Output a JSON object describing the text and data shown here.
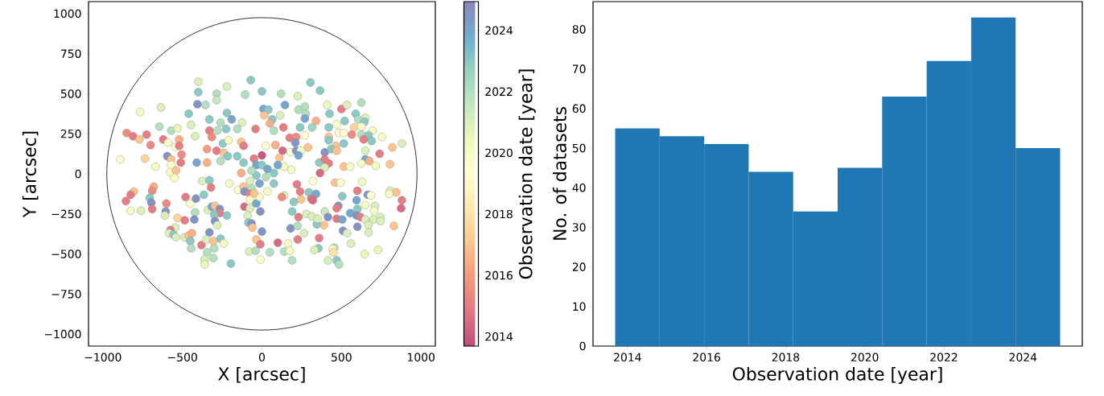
{
  "chart_data": [
    {
      "type": "scatter",
      "xlabel": "X [arcsec]",
      "ylabel": "Y [arcsec]",
      "clabel": "Observation date [year]",
      "xlim": [
        -1090,
        1090
      ],
      "ylim": [
        -1075,
        1075
      ],
      "xticks": [
        {
          "value": -1000,
          "label": "−1000"
        },
        {
          "value": -500,
          "label": "−500"
        },
        0,
        500,
        1000
      ],
      "yticks": [
        {
          "value": -1000,
          "label": "−1000"
        },
        {
          "value": -750,
          "label": "−750"
        },
        {
          "value": -500,
          "label": "−500"
        },
        {
          "value": -250,
          "label": "−250"
        },
        0,
        250,
        500,
        750,
        1000
      ],
      "clim": [
        2013.69,
        2024.94
      ],
      "cticks": [
        2014,
        2016,
        2018,
        2020,
        2022,
        2024
      ],
      "marker": "circle",
      "series": [
        {
          "type": "scatter",
          "x": [
            -400,
            -70,
            -400,
            -285,
            -220,
            -285,
            -105,
            0,
            -405,
            -355,
            -635,
            -765,
            -460,
            -330,
            -260,
            -220,
            -190,
            -125,
            -645,
            -445,
            -570,
            -530,
            -330,
            -280,
            -225,
            -155,
            -40,
            -850,
            -810,
            -770,
            -725,
            -420,
            -315,
            -620,
            -590,
            -520,
            -700,
            -545,
            -520,
            -245,
            -210,
            -130,
            -115,
            -345,
            -285,
            -240,
            -595,
            -505,
            -570,
            -510,
            -410,
            -345,
            -260,
            -215,
            -155,
            -115,
            -890,
            -735,
            -670,
            -570,
            -50,
            305,
            365,
            120,
            225,
            145,
            10,
            40,
            230,
            270,
            410,
            500,
            535,
            625,
            115,
            275,
            425,
            590,
            650,
            15,
            65,
            270,
            340,
            605,
            645,
            50,
            135,
            240,
            315,
            420,
            470,
            520,
            580,
            625,
            695,
            75,
            485,
            515,
            565,
            625,
            670,
            175,
            215,
            270,
            420,
            755,
            640,
            690,
            420,
            210,
            25,
            85,
            465,
            515,
            880,
            820,
            290,
            130,
            180,
            215,
            245,
            395,
            435,
            470,
            650,
            740,
            230,
            110,
            650,
            675,
            625,
            715,
            805,
            360,
            395,
            420,
            515,
            555,
            395,
            365,
            0,
            140,
            185,
            -575,
            -540,
            -550,
            -805,
            -825,
            -680,
            -690,
            -855,
            -705,
            -695,
            -690,
            -825,
            -760,
            -600,
            -605,
            -610,
            -530,
            -480,
            -450,
            -415,
            -365,
            -375,
            -330,
            -320,
            -205,
            -485,
            -420,
            -425,
            -340,
            -315,
            -295,
            -265,
            -265,
            -220,
            -300,
            -295,
            -280,
            -545,
            -575,
            -585,
            -555,
            -540,
            -485,
            -460,
            -440,
            -330,
            -450,
            -445,
            -380,
            -350,
            -305,
            -260,
            -240,
            -300,
            -345,
            -305,
            -360,
            -360,
            -195,
            -130,
            -150,
            -115,
            -65,
            -110,
            -75,
            -75,
            -110,
            -75,
            -35,
            -10,
            -90,
            -85,
            -65,
            -60,
            0,
            -35,
            -10,
            -80,
            -40,
            220,
            320,
            460,
            495,
            630,
            805,
            845,
            800,
            240,
            295,
            340,
            310,
            320,
            600,
            665,
            685,
            505,
            140,
            200,
            245,
            125,
            880,
            875,
            710,
            650,
            705,
            595,
            480,
            470,
            600,
            555,
            595,
            620,
            650,
            700,
            745,
            745,
            670,
            670,
            830,
            600,
            395,
            415,
            470,
            505,
            510,
            535,
            390,
            345,
            230,
            190,
            280,
            315,
            350,
            180,
            225,
            265,
            225,
            165,
            100,
            360,
            355,
            330,
            455,
            445,
            450,
            560,
            645,
            730,
            50,
            140,
            175,
            190,
            415,
            470,
            485,
            -10,
            -35,
            0,
            35,
            -35,
            25,
            -15,
            75,
            -65,
            100,
            -75,
            75,
            35,
            -15,
            -50
          ],
          "values": [
            575,
            585,
            510,
            500,
            545,
            460,
            495,
            515,
            435,
            430,
            415,
            385,
            375,
            340,
            320,
            380,
            340,
            320,
            295,
            305,
            270,
            285,
            270,
            270,
            280,
            280,
            280,
            255,
            235,
            215,
            245,
            235,
            230,
            215,
            195,
            215,
            180,
            170,
            175,
            190,
            210,
            200,
            175,
            155,
            145,
            130,
            110,
            120,
            90,
            70,
            70,
            70,
            80,
            110,
            110,
            70,
            90,
            95,
            45,
            55,
            95,
            570,
            520,
            500,
            485,
            430,
            405,
            400,
            400,
            420,
            430,
            405,
            430,
            445,
            365,
            375,
            375,
            375,
            350,
            365,
            340,
            345,
            330,
            340,
            325,
            315,
            290,
            290,
            290,
            290,
            310,
            330,
            290,
            295,
            270,
            270,
            255,
            255,
            245,
            245,
            240,
            225,
            230,
            240,
            230,
            230,
            215,
            205,
            210,
            195,
            175,
            180,
            175,
            190,
            190,
            165,
            165,
            145,
            135,
            145,
            145,
            135,
            155,
            145,
            145,
            125,
            115,
            100,
            90,
            80,
            65,
            50,
            60,
            70,
            90,
            65,
            45,
            45,
            40,
            5,
            115,
            45,
            25,
            10,
            20,
            -25,
            -110,
            -130,
            -80,
            -105,
            -170,
            -150,
            -180,
            -220,
            -230,
            -230,
            -185,
            -235,
            -260,
            -275,
            -145,
            -185,
            -155,
            -130,
            -45,
            -40,
            -85,
            -60,
            -290,
            -240,
            -285,
            -225,
            -205,
            -200,
            -220,
            -245,
            -260,
            -255,
            -295,
            -320,
            -335,
            -350,
            -370,
            -380,
            -395,
            -395,
            -385,
            -370,
            -365,
            -420,
            -465,
            -445,
            -410,
            -420,
            -405,
            -435,
            -465,
            -490,
            -525,
            -535,
            -565,
            -560,
            5,
            -100,
            -80,
            -90,
            -110,
            -125,
            -160,
            -205,
            -215,
            -185,
            -235,
            -260,
            -305,
            -310,
            -335,
            -360,
            -410,
            -440,
            -485,
            -480,
            -65,
            -45,
            -55,
            -55,
            -50,
            -105,
            -115,
            -125,
            -110,
            -115,
            -125,
            -155,
            -165,
            -105,
            -130,
            -135,
            -140,
            -135,
            -175,
            -160,
            -145,
            -165,
            -215,
            -200,
            -195,
            -230,
            -165,
            -200,
            -215,
            -220,
            -245,
            -260,
            -270,
            -285,
            -285,
            -270,
            -295,
            -320,
            -365,
            -325,
            -330,
            -235,
            -270,
            -280,
            -285,
            -355,
            -370,
            -320,
            -315,
            -270,
            -235,
            -250,
            -265,
            -280,
            -340,
            -325,
            -370,
            -410,
            -435,
            -430,
            -400,
            -465,
            -475,
            -460,
            -470,
            -490,
            -435,
            -500,
            -475,
            -490,
            -485,
            -480,
            -540,
            -540,
            -540,
            -565,
            -535,
            55,
            55,
            30,
            -10,
            -20,
            -60,
            5,
            20,
            55,
            -45,
            -60,
            -110,
            -145,
            -120
          ],
          "cvalues": [
            2021,
            2023,
            2023,
            2022,
            2021,
            2021.5,
            2022,
            2023,
            2024.5,
            2022,
            2021,
            2020,
            2023,
            2023,
            2022,
            2023,
            2024,
            2021,
            2022,
            2021,
            2022,
            2020.5,
            2015,
            2022,
            2023,
            2022,
            2015,
            2015.5,
            2015,
            2017,
            2015,
            2021,
            2015.5,
            2015,
            2019.5,
            2016.5,
            2015.5,
            2019.5,
            2015,
            2023,
            2020,
            2017,
            2015,
            2016,
            2015,
            2017,
            2024.5,
            2015.5,
            2017,
            2015,
            2024,
            2016.5,
            2022,
            2023,
            2023,
            2023,
            2019.5,
            2017.5,
            2020,
            2019.5,
            2015,
            2023,
            2023,
            2022,
            2021,
            2024,
            2024,
            2023,
            2022,
            2022,
            2020.5,
            2015,
            2021,
            2022,
            2021,
            2022,
            2023,
            2023,
            2021,
            2017,
            2023,
            2024,
            2016.5,
            2022,
            2023,
            2016.5,
            2015,
            2023,
            2022.5,
            2023,
            2019.5,
            2023,
            2017.5,
            2020,
            2020,
            2022,
            2019,
            2019.5,
            2015.5,
            2022,
            2023,
            2015,
            2015.5,
            2019.5,
            2017,
            2020,
            2015,
            2023,
            2023,
            2024.5,
            2019.5,
            2016.5,
            2017,
            2023,
            2021,
            2017,
            2017,
            2014.5,
            2019.5,
            2024.5,
            2020,
            2024.5,
            2023,
            2017,
            2021,
            2015,
            2024,
            2017,
            2024,
            2016.5,
            2020,
            2020,
            2017,
            2023,
            2015,
            2015,
            2017,
            2020,
            2021,
            2014.5,
            2014,
            2020,
            2020,
            2020,
            2017,
            2019,
            2017,
            2015,
            2016.5,
            2015.5,
            2015,
            2023,
            2024.5,
            2015,
            2020,
            2021,
            2015.5,
            2024.5,
            2021,
            2017.5,
            2015,
            2019.5,
            2024.5,
            2023,
            2021,
            2023,
            2015,
            2020,
            2015,
            2022,
            2024.5,
            2021,
            2024,
            2017,
            2024.5,
            2015,
            2023,
            2023,
            2024.5,
            2021,
            2021,
            2015,
            2021,
            2023,
            2021,
            2021,
            2017,
            2016.5,
            2024.5,
            2023,
            2022,
            2015,
            2021,
            2017,
            2023,
            2020,
            2022,
            2022,
            2022,
            2021,
            2020.5,
            2023,
            2016.5,
            2019.5,
            2017,
            2022,
            2024.5,
            2015,
            2020,
            2014.5,
            2021,
            2024,
            2024.5,
            2021,
            2023,
            2024.5,
            2017,
            2024.5,
            2017,
            2015,
            2021,
            2022,
            2015,
            2019.5,
            2017,
            2019.5,
            2020,
            2021,
            2017,
            2020,
            2015,
            2023,
            2024,
            2015,
            2014.5,
            2015,
            2024.5,
            2019.5,
            2023,
            2021,
            2023,
            2017,
            2015.5,
            2015,
            2014.5,
            2021,
            2020,
            2020,
            2024,
            2024.5,
            2015,
            2023,
            2024,
            2024.5,
            2015,
            2021,
            2021,
            2021,
            2021,
            2021,
            2021,
            2017,
            2024.5,
            2021.5,
            2024.5,
            2015,
            2024,
            2024.5,
            2021,
            2017,
            2023,
            2015,
            2023,
            2021,
            2021,
            2021,
            2024.5,
            2022,
            2021,
            2015,
            2020,
            2014.5,
            2015,
            2023,
            2021,
            2022,
            2020,
            2018,
            2021,
            2020.5,
            2020.5,
            2022,
            2022,
            2020,
            2022,
            2021,
            2023,
            2022,
            2019.5,
            2024,
            2023,
            2024,
            2023,
            2022,
            2024,
            2023,
            2022,
            2024,
            2021,
            2023,
            2020,
            2020,
            2017
          ]
        }
      ]
    },
    {
      "type": "histogram",
      "xlabel": "Observation date [year]",
      "ylabel": "No. of datasets",
      "color": "#1f77b4",
      "bins": [
        2013.69,
        2014.815,
        2015.94,
        2017.065,
        2018.19,
        2019.315,
        2020.44,
        2021.565,
        2022.69,
        2023.815,
        2024.94
      ],
      "values": [
        55,
        53,
        51,
        44,
        34,
        45,
        63,
        72,
        83,
        50
      ],
      "xlim": [
        2013.13,
        2025.5
      ],
      "ylim": [
        0,
        87
      ],
      "xticks": [
        2014,
        2016,
        2018,
        2020,
        2022,
        2024
      ],
      "yticks": [
        0,
        10,
        20,
        30,
        40,
        50,
        60,
        70,
        80
      ]
    }
  ]
}
